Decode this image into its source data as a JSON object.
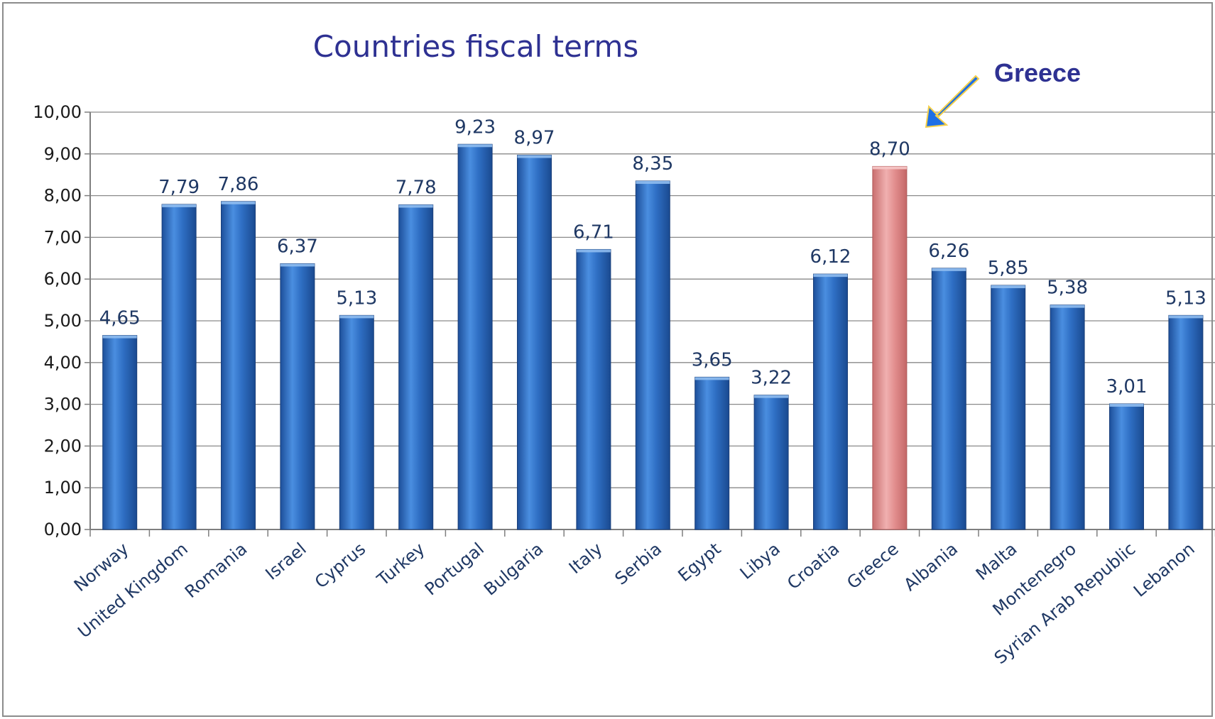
{
  "chart_data": {
    "type": "bar",
    "title": "Countries fiscal terms",
    "xlabel": "",
    "ylabel": "",
    "ylim": [
      0,
      10
    ],
    "yticks": [
      "0,00",
      "1,00",
      "2,00",
      "3,00",
      "4,00",
      "5,00",
      "6,00",
      "7,00",
      "8,00",
      "9,00",
      "10,00"
    ],
    "grid": true,
    "legend": "none",
    "categories": [
      "Norway",
      "United Kingdom",
      "Romania",
      "Israel",
      "Cyprus",
      "Turkey",
      "Portugal",
      "Bulgaria",
      "Italy",
      "Serbia",
      "Egypt",
      "Libya",
      "Croatia",
      "Greece",
      "Albania",
      "Malta",
      "Montenegro",
      "Syrian Arab Republic",
      "Lebanon"
    ],
    "values": [
      4.65,
      7.79,
      7.86,
      6.37,
      5.13,
      7.78,
      9.23,
      8.97,
      6.71,
      8.35,
      3.65,
      3.22,
      6.12,
      8.7,
      6.26,
      5.85,
      5.38,
      3.01,
      5.13
    ],
    "value_labels": [
      "4,65",
      "7,79",
      "7,86",
      "6,37",
      "5,13",
      "7,78",
      "9,23",
      "8,97",
      "6,71",
      "8,35",
      "3,65",
      "3,22",
      "6,12",
      "8,70",
      "6,26",
      "5,85",
      "5,38",
      "3,01",
      "5,13"
    ],
    "highlight_index": 13,
    "annotation": {
      "text": "Greece",
      "target": "Greece",
      "icon": "arrow-icon"
    },
    "colors": {
      "bar": "#2f6fc4",
      "highlight": "#e28e8e",
      "title": "#2e3192",
      "annotation_arrow": "#1e6fe6"
    }
  }
}
